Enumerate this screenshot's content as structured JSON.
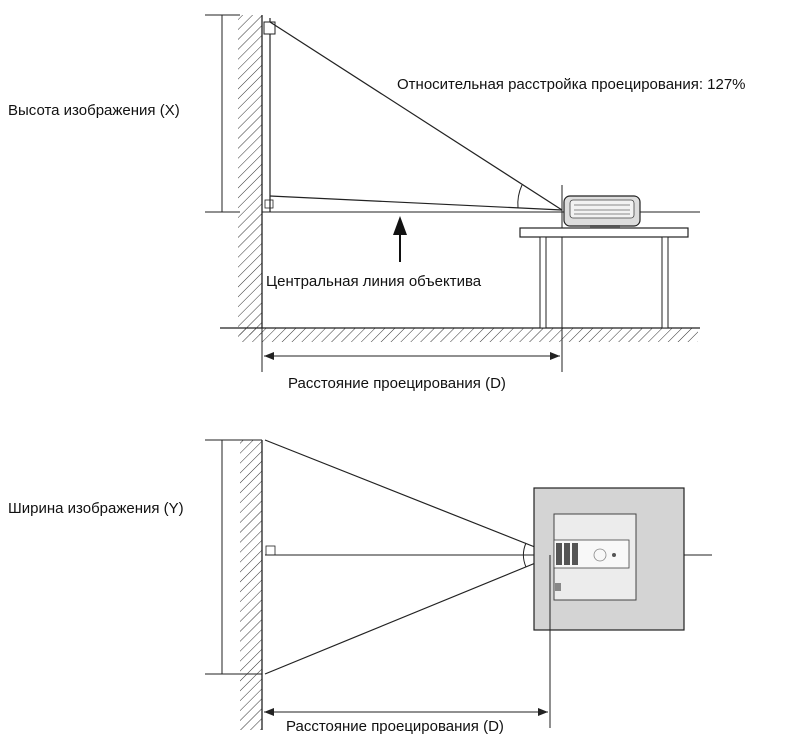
{
  "side_view": {
    "height_label": "Высота изображения (X)",
    "offset_label": "Относительная расстройка проецирования: 127%",
    "lens_center_label": "Центральная линия объектива",
    "distance_label": "Расстояние проецирования (D)"
  },
  "top_view": {
    "width_label": "Ширина изображения (Y)",
    "distance_label": "Расстояние проецирования (D)"
  },
  "colors": {
    "line": "#222222",
    "projector_fill": "#d9d9d9",
    "projector_inner": "#ececec",
    "background": "#ffffff"
  }
}
